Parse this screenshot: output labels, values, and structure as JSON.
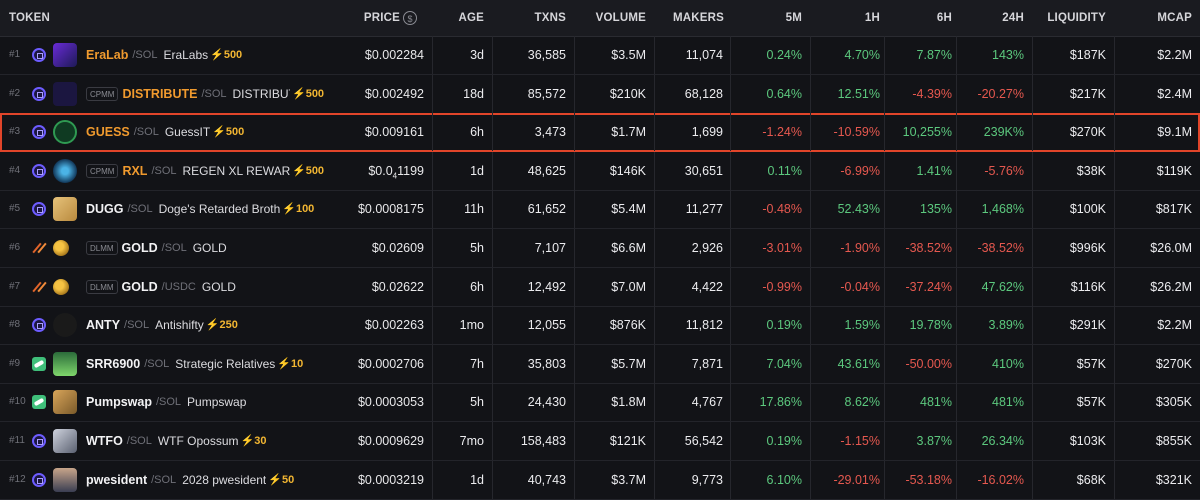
{
  "header": {
    "token": "TOKEN",
    "price": "PRICE",
    "price_currency_icon": "$",
    "age": "AGE",
    "txns": "TXNS",
    "volume": "VOLUME",
    "makers": "MAKERS",
    "m5": "5M",
    "h1": "1H",
    "h6": "6H",
    "h24": "24H",
    "liquidity": "LIQUIDITY",
    "mcap": "MCAP"
  },
  "colors": {
    "positive": "#5cc87e",
    "negative": "#e5584f",
    "highlight_border": "#e1452a",
    "boost": "#f2b632",
    "symbol_orange": "#f09a2e"
  },
  "rows": [
    {
      "rank": "#1",
      "dex": "raydium-icon",
      "tag": "",
      "symbol": "EraLab",
      "symbol_color": "orange",
      "quote": "/SOL",
      "name": "EraLabs",
      "boost": "⚡500",
      "price": "$0.002284",
      "age": "3d",
      "txns": "36,585",
      "volume": "$3.5M",
      "makers": "11,074",
      "m5": "0.24%",
      "h1": "4.70%",
      "h6": "7.87%",
      "h24": "143%",
      "liquidity": "$187K",
      "mcap": "$2.2M",
      "logo": "eralab-logo",
      "highlight": false
    },
    {
      "rank": "#2",
      "dex": "raydium-icon",
      "tag": "CPMM",
      "symbol": "DISTRIBUTE",
      "symbol_color": "orange",
      "quote": "/SOL",
      "name": "DISTRIBUT",
      "boost": "⚡500",
      "price": "$0.002492",
      "age": "18d",
      "txns": "85,572",
      "volume": "$210K",
      "makers": "68,128",
      "m5": "0.64%",
      "h1": "12.51%",
      "h6": "-4.39%",
      "h24": "-20.27%",
      "liquidity": "$217K",
      "mcap": "$2.4M",
      "logo": "distribute-logo",
      "highlight": false
    },
    {
      "rank": "#3",
      "dex": "raydium-icon",
      "tag": "",
      "symbol": "GUESS",
      "symbol_color": "orange",
      "quote": "/SOL",
      "name": "GuessIT",
      "boost": "⚡500",
      "price": "$0.009161",
      "age": "6h",
      "txns": "3,473",
      "volume": "$1.7M",
      "makers": "1,699",
      "m5": "-1.24%",
      "h1": "-10.59%",
      "h6": "10,255%",
      "h24": "239K%",
      "liquidity": "$270K",
      "mcap": "$9.1M",
      "logo": "guess-logo",
      "highlight": true
    },
    {
      "rank": "#4",
      "dex": "raydium-icon",
      "tag": "CPMM",
      "symbol": "RXL",
      "symbol_color": "orange",
      "quote": "/SOL",
      "name": "REGEN XL REWARD",
      "boost": "⚡500",
      "price_main": "$0.0",
      "price_sub": "4",
      "price_tail": "1199",
      "price": "$0.0₄1199",
      "age": "1d",
      "txns": "48,625",
      "volume": "$146K",
      "makers": "30,651",
      "m5": "0.11%",
      "h1": "-6.99%",
      "h6": "1.41%",
      "h24": "-5.76%",
      "liquidity": "$38K",
      "mcap": "$119K",
      "logo": "rxl-logo",
      "highlight": false
    },
    {
      "rank": "#5",
      "dex": "raydium-icon",
      "tag": "",
      "symbol": "DUGG",
      "symbol_color": "white",
      "quote": "/SOL",
      "name": "Doge's Retarded Broth",
      "boost": "⚡100",
      "price": "$0.0008175",
      "age": "11h",
      "txns": "61,652",
      "volume": "$5.4M",
      "makers": "11,277",
      "m5": "-0.48%",
      "h1": "52.43%",
      "h6": "135%",
      "h24": "1,468%",
      "liquidity": "$100K",
      "mcap": "$817K",
      "logo": "dugg-logo",
      "highlight": false
    },
    {
      "rank": "#6",
      "dex": "meteora-icon",
      "tag": "DLMM",
      "symbol": "GOLD",
      "symbol_color": "white",
      "quote": "/SOL",
      "name": "GOLD",
      "boost": "",
      "price": "$0.02609",
      "age": "5h",
      "txns": "7,107",
      "volume": "$6.6M",
      "makers": "2,926",
      "m5": "-3.01%",
      "h1": "-1.90%",
      "h6": "-38.52%",
      "h24": "-38.52%",
      "liquidity": "$996K",
      "mcap": "$26.0M",
      "logo": "gold-coins-logo",
      "highlight": false
    },
    {
      "rank": "#7",
      "dex": "meteora-icon",
      "tag": "DLMM",
      "symbol": "GOLD",
      "symbol_color": "white",
      "quote": "/USDC",
      "name": "GOLD",
      "boost": "",
      "price": "$0.02622",
      "age": "6h",
      "txns": "12,492",
      "volume": "$7.0M",
      "makers": "4,422",
      "m5": "-0.99%",
      "h1": "-0.04%",
      "h6": "-37.24%",
      "h24": "47.62%",
      "liquidity": "$116K",
      "mcap": "$26.2M",
      "logo": "gold-coins-logo",
      "highlight": false
    },
    {
      "rank": "#8",
      "dex": "raydium-icon",
      "tag": "",
      "symbol": "ANTY",
      "symbol_color": "white",
      "quote": "/SOL",
      "name": "Antishifty",
      "boost": "⚡250",
      "price": "$0.002263",
      "age": "1mo",
      "txns": "12,055",
      "volume": "$876K",
      "makers": "11,812",
      "m5": "0.19%",
      "h1": "1.59%",
      "h6": "19.78%",
      "h24": "3.89%",
      "liquidity": "$291K",
      "mcap": "$2.2M",
      "logo": "anty-logo",
      "highlight": false
    },
    {
      "rank": "#9",
      "dex": "pumpswap-icon",
      "tag": "",
      "symbol": "SRR6900",
      "symbol_color": "white",
      "quote": "/SOL",
      "name": "Strategic Relatives",
      "boost": "⚡10",
      "price": "$0.0002706",
      "age": "7h",
      "txns": "35,803",
      "volume": "$5.7M",
      "makers": "7,871",
      "m5": "7.04%",
      "h1": "43.61%",
      "h6": "-50.00%",
      "h24": "410%",
      "liquidity": "$57K",
      "mcap": "$270K",
      "logo": "srr6900-logo",
      "highlight": false
    },
    {
      "rank": "#10",
      "dex": "pumpswap-icon",
      "tag": "",
      "symbol": "Pumpswap",
      "symbol_color": "white",
      "quote": "/SOL",
      "name": "Pumpswap",
      "boost": "",
      "price": "$0.0003053",
      "age": "5h",
      "txns": "24,430",
      "volume": "$1.8M",
      "makers": "4,767",
      "m5": "17.86%",
      "h1": "8.62%",
      "h6": "481%",
      "h24": "481%",
      "liquidity": "$57K",
      "mcap": "$305K",
      "logo": "pumpswap-logo",
      "highlight": false
    },
    {
      "rank": "#11",
      "dex": "raydium-icon",
      "tag": "",
      "symbol": "WTFO",
      "symbol_color": "white",
      "quote": "/SOL",
      "name": "WTF Opossum",
      "boost": "⚡30",
      "price": "$0.0009629",
      "age": "7mo",
      "txns": "158,483",
      "volume": "$121K",
      "makers": "56,542",
      "m5": "0.19%",
      "h1": "-1.15%",
      "h6": "3.87%",
      "h24": "26.34%",
      "liquidity": "$103K",
      "mcap": "$855K",
      "logo": "wtfo-logo",
      "highlight": false
    },
    {
      "rank": "#12",
      "dex": "raydium-icon",
      "tag": "",
      "symbol": "pwesident",
      "symbol_color": "white",
      "quote": "/SOL",
      "name": "2028 pwesident",
      "boost": "⚡50",
      "price": "$0.0003219",
      "age": "1d",
      "txns": "40,743",
      "volume": "$3.7M",
      "makers": "9,773",
      "m5": "6.10%",
      "h1": "-29.01%",
      "h6": "-53.18%",
      "h24": "-16.02%",
      "liquidity": "$68K",
      "mcap": "$321K",
      "logo": "pwesident-logo",
      "highlight": false
    }
  ]
}
